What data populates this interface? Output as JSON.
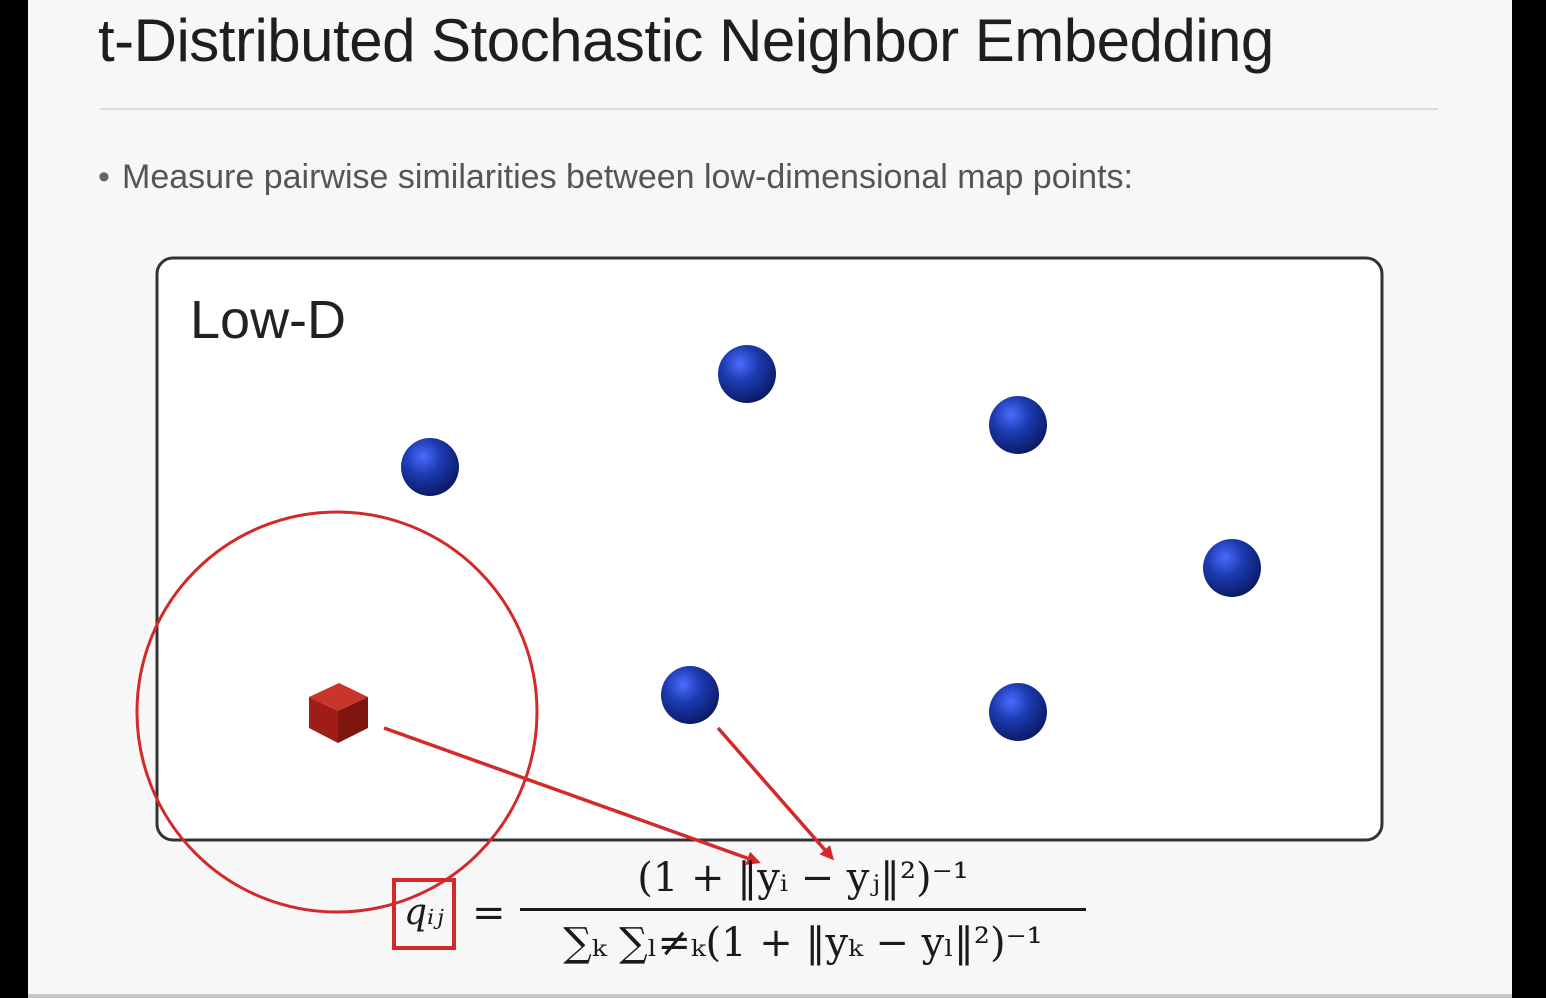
{
  "slide": {
    "title": "t-Distributed Stochastic Neighbor Embedding",
    "bullet": "Measure pairwise similarities between low-dimensional map points:"
  },
  "diagram": {
    "panel_label": "Low-D",
    "point_color": "#1c3bb0",
    "highlight_color": "#d22a2a",
    "cube_color": "#a8221c"
  },
  "formula": {
    "lhs": "qᵢⱼ",
    "equals": "=",
    "numerator": "(1 + ‖yᵢ − yⱼ‖²)⁻¹",
    "denominator": "∑ₖ ∑ₗ≠ₖ(1 + ‖yₖ − yₗ‖²)⁻¹"
  }
}
